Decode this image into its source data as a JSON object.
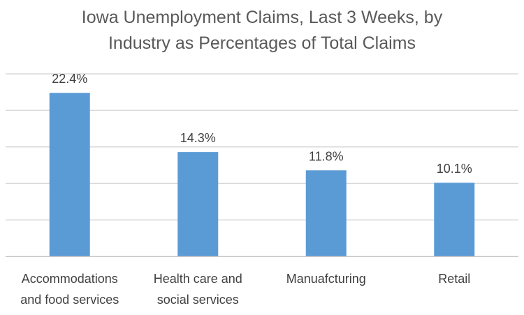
{
  "chart_data": {
    "type": "bar",
    "title": [
      "Iowa Unemployment Claims, Last 3 Weeks, by",
      "Industry as Percentages of Total Claims"
    ],
    "categories": [
      [
        "Accommodations",
        "and food services"
      ],
      [
        "Health care and",
        "social services"
      ],
      [
        "Manuafcturing"
      ],
      [
        "Retail"
      ]
    ],
    "values": [
      22.4,
      14.3,
      11.8,
      10.1
    ],
    "data_labels": [
      "22.4%",
      "14.3%",
      "11.8%",
      "10.1%"
    ],
    "ylim": [
      0,
      25
    ],
    "ytick_step": 5,
    "ytick_labels_shown": false,
    "grid": true,
    "legend": "none",
    "bar_color": "#5B9BD5",
    "grid_color": "#D9D9D9",
    "axis_color": "#BFBFBF"
  }
}
